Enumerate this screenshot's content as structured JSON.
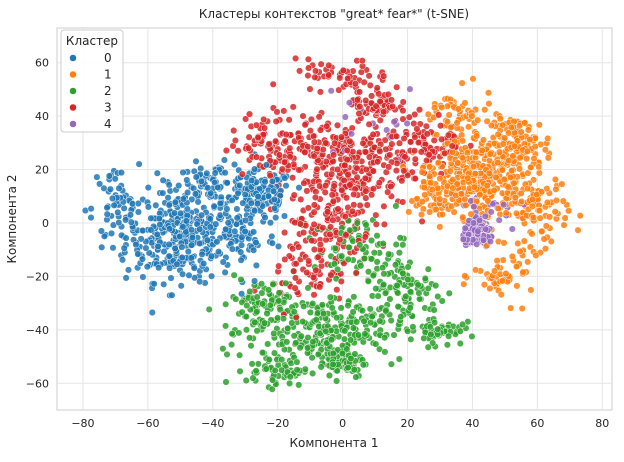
{
  "chart_data": {
    "type": "scatter",
    "title": "Кластеры контекстов \"great* fear*\" (t-SNE)",
    "xlabel": "Компонента 1",
    "ylabel": "Компонента 2",
    "xlim": [
      -88,
      83
    ],
    "ylim": [
      -70,
      73
    ],
    "xticks": [
      -80,
      -60,
      -40,
      -20,
      0,
      20,
      40,
      60,
      80
    ],
    "yticks": [
      -60,
      -40,
      -20,
      0,
      20,
      40,
      60
    ],
    "grid": true,
    "legend": {
      "title": "Кластер",
      "placement": "top-left"
    },
    "point_alpha": 0.85,
    "series": [
      {
        "name": "0",
        "color": "#1f77b4",
        "regions": [
          {
            "center": [
              -50,
              -5
            ],
            "spread": [
              14,
              14
            ],
            "count": 340
          },
          {
            "center": [
              -25,
              10
            ],
            "spread": [
              8,
              8
            ],
            "count": 120
          },
          {
            "center": [
              -40,
              15
            ],
            "spread": [
              10,
              6
            ],
            "count": 80
          },
          {
            "center": [
              -70,
              5
            ],
            "spread": [
              6,
              14
            ],
            "count": 60
          },
          {
            "center": [
              -30,
              -5
            ],
            "spread": [
              8,
              10
            ],
            "count": 60
          }
        ]
      },
      {
        "name": "1",
        "color": "#ff7f0e",
        "regions": [
          {
            "center": [
              42,
              18
            ],
            "spread": [
              13,
              13
            ],
            "count": 340
          },
          {
            "center": [
              55,
              30
            ],
            "spread": [
              8,
              8
            ],
            "count": 80
          },
          {
            "center": [
              60,
              5
            ],
            "spread": [
              8,
              12
            ],
            "count": 90
          },
          {
            "center": [
              30,
              10
            ],
            "spread": [
              8,
              8
            ],
            "count": 70
          },
          {
            "center": [
              50,
              -20
            ],
            "spread": [
              8,
              8
            ],
            "count": 50
          },
          {
            "center": [
              35,
              40
            ],
            "spread": [
              10,
              8
            ],
            "count": 60
          }
        ]
      },
      {
        "name": "2",
        "color": "#2ca02c",
        "regions": [
          {
            "center": [
              -5,
              -40
            ],
            "spread": [
              20,
              10
            ],
            "count": 260
          },
          {
            "center": [
              -20,
              -55
            ],
            "spread": [
              8,
              5
            ],
            "count": 60
          },
          {
            "center": [
              0,
              -52
            ],
            "spread": [
              6,
              5
            ],
            "count": 70
          },
          {
            "center": [
              20,
              -25
            ],
            "spread": [
              10,
              10
            ],
            "count": 90
          },
          {
            "center": [
              30,
              -40
            ],
            "spread": [
              6,
              5
            ],
            "count": 50
          },
          {
            "center": [
              -25,
              -30
            ],
            "spread": [
              10,
              8
            ],
            "count": 80
          },
          {
            "center": [
              5,
              -10
            ],
            "spread": [
              12,
              10
            ],
            "count": 80
          }
        ]
      },
      {
        "name": "3",
        "color": "#d62728",
        "regions": [
          {
            "center": [
              0,
              22
            ],
            "spread": [
              18,
              14
            ],
            "count": 280
          },
          {
            "center": [
              10,
              45
            ],
            "spread": [
              6,
              6
            ],
            "count": 60
          },
          {
            "center": [
              -20,
              30
            ],
            "spread": [
              12,
              10
            ],
            "count": 100
          },
          {
            "center": [
              -5,
              0
            ],
            "spread": [
              12,
              12
            ],
            "count": 120
          },
          {
            "center": [
              25,
              30
            ],
            "spread": [
              10,
              10
            ],
            "count": 80
          },
          {
            "center": [
              0,
              55
            ],
            "spread": [
              12,
              5
            ],
            "count": 50
          },
          {
            "center": [
              -10,
              -20
            ],
            "spread": [
              10,
              10
            ],
            "count": 60
          }
        ]
      },
      {
        "name": "4",
        "color": "#9467bd",
        "regions": [
          {
            "center": [
              42,
              -4
            ],
            "spread": [
              4,
              4
            ],
            "count": 130
          },
          {
            "center": [
              45,
              5
            ],
            "spread": [
              8,
              8
            ],
            "count": 20
          },
          {
            "center": [
              10,
              40
            ],
            "spread": [
              15,
              15
            ],
            "count": 15
          }
        ]
      }
    ]
  }
}
